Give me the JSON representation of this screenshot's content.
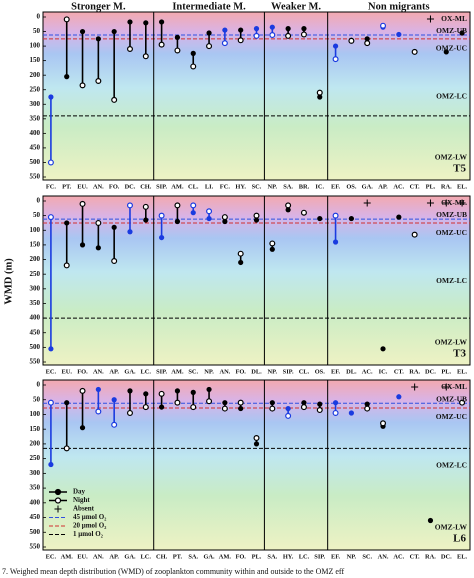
{
  "caption": "7. Weighed mean depth distribution (WMD) of zooplankton community within and outside to the OMZ eff",
  "chart_data": [
    {
      "type": "dumbbell",
      "label": "T5",
      "ylim": [
        0,
        550
      ],
      "yticks": [
        0,
        50,
        100,
        150,
        200,
        250,
        300,
        350,
        400,
        450,
        500,
        550
      ],
      "zones": [
        "OX-ML",
        "OMZ-UB",
        "OMZ-UC",
        "OMZ-LC",
        "OMZ-LW"
      ],
      "reference_lines": [
        {
          "value": 62,
          "color": "#3050e0"
        },
        {
          "value": 75,
          "color": "#d03030"
        },
        {
          "value": 340,
          "color": "#000000"
        }
      ],
      "groups": [
        {
          "name": "Stronger M.",
          "categories": [
            "FC.",
            "PT.",
            "EU.",
            "AN.",
            "FO.",
            "DC.",
            "CH."
          ],
          "day": [
            275,
            205,
            50,
            75,
            50,
            17,
            20
          ],
          "night": [
            500,
            8,
            235,
            220,
            285,
            110,
            135
          ],
          "colors": [
            "#1a3be0",
            "#000000",
            "#000000",
            "#000000",
            "#000000",
            "#000000",
            "#000000"
          ],
          "absent": [
            false,
            false,
            false,
            false,
            false,
            false,
            false
          ]
        },
        {
          "name": "Intermediate M.",
          "categories": [
            "SIP.",
            "AM.",
            "CL.",
            "LI.",
            "FC.",
            "HY.",
            "SC."
          ],
          "day": [
            17,
            70,
            125,
            55,
            45,
            45,
            40
          ],
          "night": [
            95,
            115,
            170,
            100,
            90,
            80,
            65
          ],
          "colors": [
            "#000000",
            "#000000",
            "#000000",
            "#000000",
            "#1a3be0",
            "#000000",
            "#1a3be0"
          ],
          "absent": [
            false,
            false,
            false,
            false,
            false,
            false,
            false
          ]
        },
        {
          "name": "Weaker M.",
          "categories": [
            "NP.",
            "SA.",
            "BR.",
            "IC."
          ],
          "day": [
            35,
            40,
            40,
            275
          ],
          "night": [
            62,
            65,
            60,
            260
          ],
          "colors": [
            "#1a3be0",
            "#000000",
            "#000000",
            "#000000"
          ],
          "absent": [
            false,
            false,
            false,
            false
          ]
        },
        {
          "name": "Non migrants",
          "categories": [
            "EF.",
            "OS.",
            "GA.",
            "AP.",
            "AC.",
            "CT.",
            "PL.",
            "RA.",
            "EL."
          ],
          "day": [
            100,
            80,
            75,
            35,
            60,
            null,
            null,
            120,
            55
          ],
          "night": [
            145,
            82,
            90,
            30,
            null,
            120,
            null,
            null,
            null
          ],
          "colors": [
            "#1a3be0",
            "#000000",
            "#000000",
            "#1a3be0",
            "#1a3be0",
            "#000000",
            "#000000",
            "#000000",
            "#000000"
          ],
          "absent": [
            false,
            false,
            false,
            false,
            false,
            false,
            true,
            false,
            false
          ]
        }
      ]
    },
    {
      "type": "dumbbell",
      "label": "T3",
      "y_label": "WMD (m)",
      "ylim": [
        0,
        550
      ],
      "yticks": [
        0,
        50,
        100,
        150,
        200,
        250,
        300,
        350,
        400,
        450,
        500,
        550
      ],
      "zones": [
        "OX-ML",
        "OMZ-UB",
        "OMZ-UC",
        "OMZ-LC",
        "OMZ-LW"
      ],
      "reference_lines": [
        {
          "value": 62,
          "color": "#3050e0"
        },
        {
          "value": 75,
          "color": "#d03030"
        },
        {
          "value": 400,
          "color": "#000000"
        }
      ],
      "groups": [
        {
          "categories": [
            "EC.",
            "EU.",
            "FO.",
            "AN.",
            "AP.",
            "GA.",
            "LC."
          ],
          "day": [
            505,
            75,
            150,
            160,
            90,
            105,
            65
          ],
          "night": [
            55,
            220,
            10,
            75,
            205,
            15,
            20
          ],
          "colors": [
            "#1a3be0",
            "#000000",
            "#000000",
            "#000000",
            "#000000",
            "#1a3be0",
            "#000000"
          ],
          "absent": [
            false,
            false,
            false,
            false,
            false,
            false,
            false
          ]
        },
        {
          "categories": [
            "SIP.",
            "AM.",
            "SC.",
            "NP.",
            "AN.",
            "FO.",
            "DL."
          ],
          "day": [
            125,
            70,
            40,
            60,
            70,
            210,
            65
          ],
          "night": [
            50,
            15,
            15,
            35,
            55,
            180,
            50
          ],
          "colors": [
            "#1a3be0",
            "#000000",
            "#1a3be0",
            "#1a3be0",
            "#000000",
            "#000000",
            "#000000"
          ],
          "absent": [
            false,
            false,
            false,
            false,
            false,
            false,
            false
          ]
        },
        {
          "categories": [
            "NP.",
            "SIP.",
            "CL.",
            "OS."
          ],
          "day": [
            165,
            30,
            null,
            60
          ],
          "night": [
            145,
            15,
            40,
            null
          ],
          "colors": [
            "#000000",
            "#000000",
            "#000000",
            "#000000"
          ],
          "absent": [
            false,
            false,
            false,
            false
          ]
        },
        {
          "categories": [
            "EF.",
            "DL.",
            "AC.",
            "IC.",
            "CT.",
            "RA.",
            "DC.",
            "PL.",
            "EL."
          ],
          "day": [
            140,
            60,
            null,
            505,
            55,
            null,
            null,
            null,
            null
          ],
          "night": [
            50,
            null,
            null,
            null,
            null,
            115,
            null,
            null,
            null
          ],
          "colors": [
            "#1a3be0",
            "#000000",
            "#000000",
            "#000000",
            "#000000",
            "#000000",
            "#000000",
            "#000000",
            "#000000"
          ],
          "absent": [
            false,
            false,
            true,
            false,
            false,
            false,
            true,
            true,
            true
          ]
        }
      ]
    },
    {
      "type": "dumbbell",
      "label": "L6",
      "ylim": [
        0,
        550
      ],
      "yticks": [
        0,
        50,
        100,
        150,
        200,
        250,
        300,
        350,
        400,
        450,
        500,
        550
      ],
      "zones": [
        "OX-ML",
        "OMZ-UB",
        "OMZ-UC",
        "OMZ-LC",
        "OMZ-LW"
      ],
      "legend": {
        "day": "Day",
        "night": "Night",
        "absent": "Absent"
      },
      "reference_lines": [
        {
          "name": "45 μmol O₂",
          "value": 62,
          "color": "#3050e0"
        },
        {
          "name": "20 μmol O₂",
          "value": 78,
          "color": "#d03030"
        },
        {
          "name": "1 μmol O₂",
          "value": 215,
          "color": "#000000"
        }
      ],
      "groups": [
        {
          "categories": [
            "EC.",
            "AM.",
            "EU.",
            "AN.",
            "AP.",
            "GA.",
            "LC."
          ],
          "day": [
            270,
            60,
            145,
            15,
            50,
            20,
            30
          ],
          "night": [
            60,
            215,
            20,
            90,
            135,
            95,
            75
          ],
          "colors": [
            "#1a3be0",
            "#000000",
            "#000000",
            "#1a3be0",
            "#1a3be0",
            "#000000",
            "#000000"
          ],
          "absent": [
            false,
            false,
            false,
            false,
            false,
            false,
            false
          ]
        },
        {
          "categories": [
            "CH.",
            "PT.",
            "SA.",
            "GA.",
            "AM.",
            "FO.",
            "PL."
          ],
          "day": [
            75,
            20,
            25,
            15,
            60,
            80,
            200
          ],
          "night": [
            30,
            60,
            75,
            55,
            80,
            60,
            180
          ],
          "colors": [
            "#000000",
            "#000000",
            "#000000",
            "#000000",
            "#000000",
            "#000000",
            "#000000"
          ],
          "absent": [
            false,
            false,
            false,
            false,
            false,
            false,
            false
          ]
        },
        {
          "categories": [
            "SA.",
            "HY.",
            "LC.",
            "SIP."
          ],
          "day": [
            60,
            80,
            60,
            65
          ],
          "night": [
            80,
            105,
            75,
            85
          ],
          "colors": [
            "#000000",
            "#1a3be0",
            "#000000",
            "#000000"
          ],
          "absent": [
            false,
            false,
            false,
            false
          ]
        },
        {
          "categories": [
            "EF.",
            "NP.",
            "SC.",
            "AN.",
            "AC.",
            "CT.",
            "RA.",
            "DC.",
            "EL."
          ],
          "day": [
            60,
            95,
            65,
            140,
            40,
            null,
            460,
            null,
            null
          ],
          "night": [
            95,
            null,
            80,
            130,
            null,
            null,
            null,
            null,
            60
          ],
          "colors": [
            "#1a3be0",
            "#1a3be0",
            "#000000",
            "#000000",
            "#1a3be0",
            "#000000",
            "#000000",
            "#000000",
            "#000000"
          ],
          "absent": [
            false,
            false,
            false,
            false,
            false,
            true,
            false,
            true,
            false
          ]
        }
      ]
    }
  ]
}
